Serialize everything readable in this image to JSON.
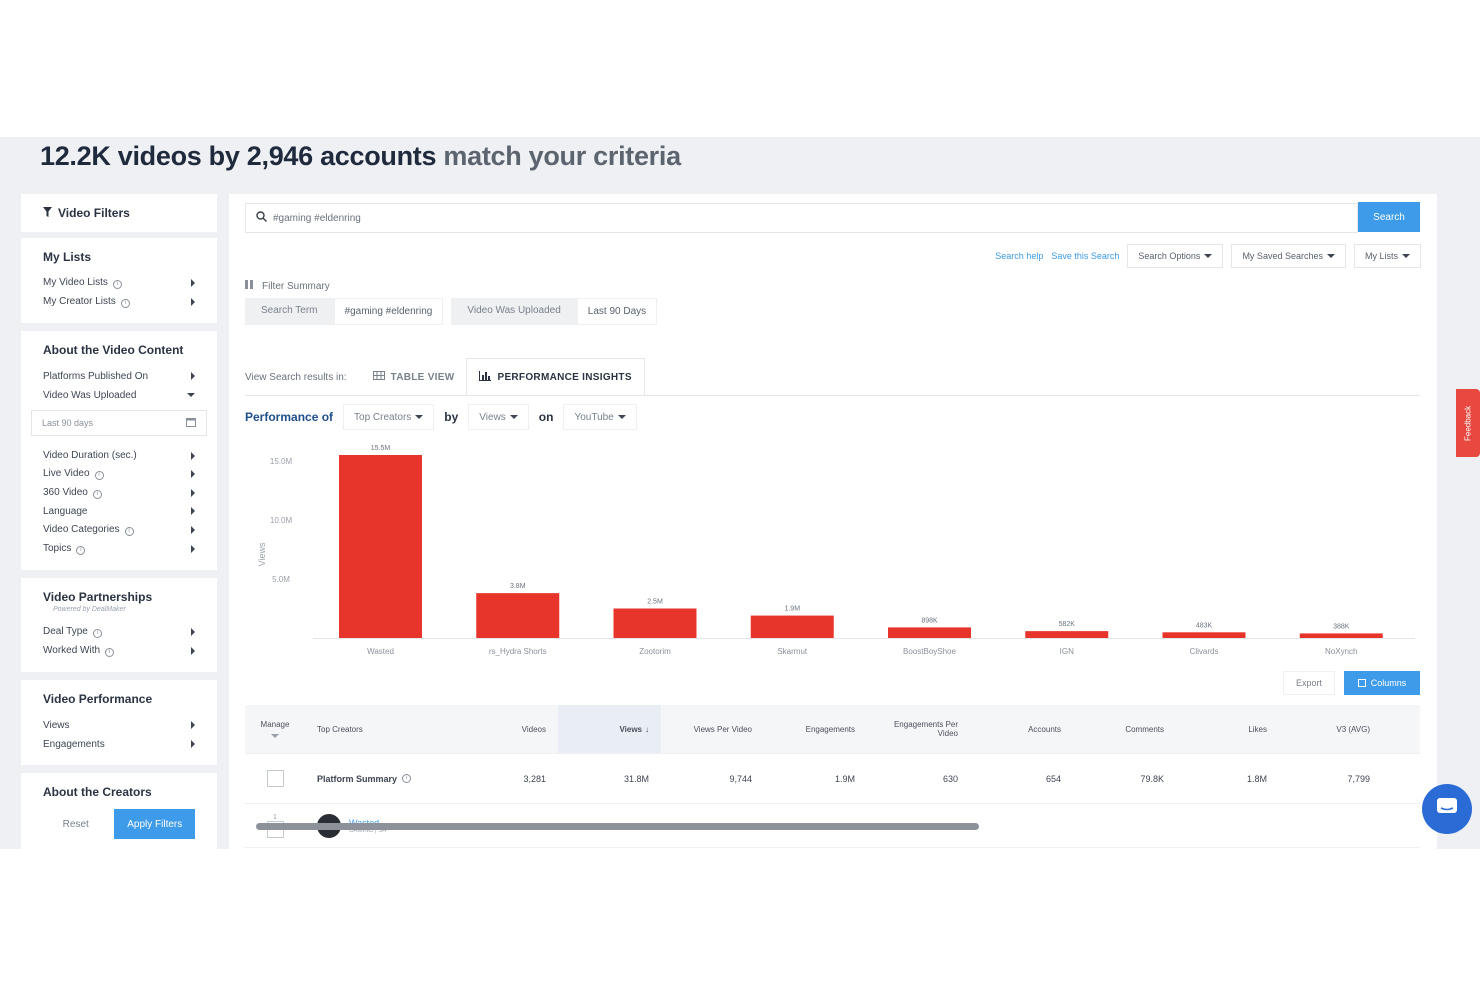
{
  "headline": {
    "bold": "12.2K videos by 2,946 accounts",
    "rest": "match your criteria"
  },
  "sidebar": {
    "filters_title": "Video Filters",
    "my_lists": {
      "title": "My Lists",
      "items": [
        "My Video Lists",
        "My Creator Lists"
      ]
    },
    "about_video": {
      "title": "About the Video Content",
      "items": [
        "Platforms Published On",
        "Video Was Uploaded"
      ],
      "date_value": "Last 90 days",
      "items2": [
        "Video Duration (sec.)",
        "Live Video",
        "360 Video",
        "Language",
        "Video Categories",
        "Topics"
      ]
    },
    "partnerships": {
      "title": "Video Partnerships",
      "subtitle": "Powered by DealMaker",
      "items": [
        "Deal Type",
        "Worked With"
      ]
    },
    "performance": {
      "title": "Video Performance",
      "items": [
        "Views",
        "Engagements"
      ]
    },
    "creators": {
      "title": "About the Creators"
    },
    "reset_label": "Reset",
    "apply_label": "Apply Filters"
  },
  "search": {
    "query": "#gaming #eldenring",
    "button": "Search",
    "help": "Search help",
    "save": "Save this Search",
    "options": "Search Options",
    "saved": "My Saved Searches",
    "lists": "My Lists"
  },
  "filter_summary": {
    "label": "Filter Summary",
    "chips": [
      {
        "key": "Search Term",
        "value": "#gaming #eldenring"
      },
      {
        "key": "Video Was Uploaded",
        "value": "Last 90 Days"
      }
    ]
  },
  "view": {
    "label": "View Search results in:",
    "tab_table": "TABLE VIEW",
    "tab_perf": "PERFORMANCE INSIGHTS"
  },
  "perf": {
    "of_label": "Performance of",
    "of_value": "Top Creators",
    "by_label": "by",
    "by_value": "Views",
    "on_label": "on",
    "on_value": "YouTube"
  },
  "chart_data": {
    "type": "bar",
    "categories": [
      "Wasted",
      "rs_Hydra Shorts",
      "Zootorim",
      "Skarmut",
      "BoostBoyShoe",
      "IGN",
      "Clivards",
      "NoXynch"
    ],
    "values": [
      15.5,
      3.8,
      2.5,
      1.9,
      0.898,
      0.582,
      0.483,
      0.388
    ],
    "value_labels": [
      "15.5M",
      "3.8M",
      "2.5M",
      "1.9M",
      "898K",
      "582K",
      "483K",
      "388K"
    ],
    "ylabel": "Views",
    "yticks": [
      "5.0M",
      "10.0M",
      "15.0M"
    ],
    "ylim": [
      0,
      15.5
    ],
    "color": "#e8352b"
  },
  "actions": {
    "export": "Export",
    "columns": "Columns"
  },
  "table": {
    "headers": [
      "Manage",
      "Top Creators",
      "Videos",
      "Views",
      "Views Per Video",
      "Engagements",
      "Engagements Per Video",
      "Accounts",
      "Comments",
      "Likes",
      "V3 (AVG)"
    ],
    "summary": {
      "label": "Platform Summary",
      "values": [
        "3,281",
        "31.8M",
        "9,744",
        "1.9M",
        "630",
        "654",
        "79.8K",
        "1.8M",
        "7,799"
      ]
    },
    "row1": {
      "rank": "1",
      "name": "Wasted",
      "sub": "GAMING | SA"
    }
  },
  "feedback": "Feedback"
}
